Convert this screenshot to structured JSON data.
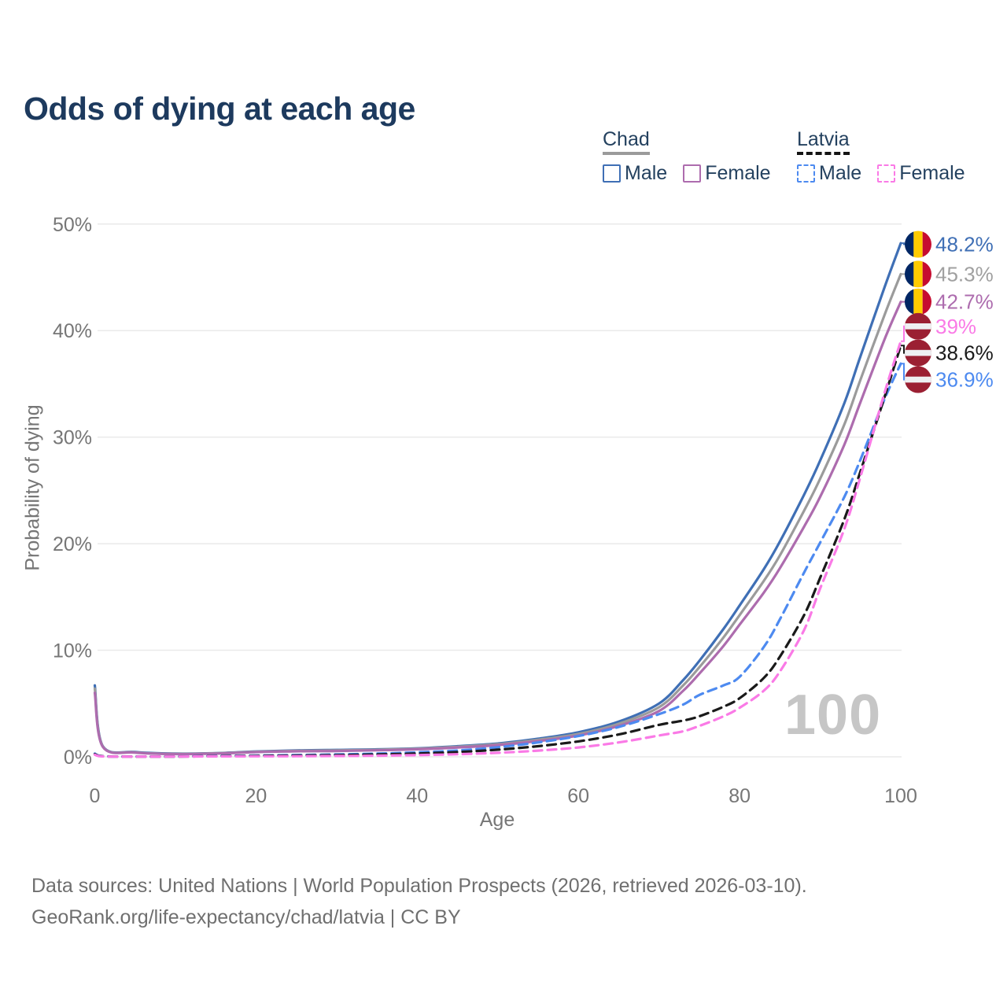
{
  "title": "Odds of dying at each age",
  "legend": {
    "groups": [
      {
        "country": "Chad",
        "line_style": "solid",
        "items": [
          {
            "label": "Male",
            "color": "#3f6fb5"
          },
          {
            "label": "Female",
            "color": "#ad6cae"
          }
        ]
      },
      {
        "country": "Latvia",
        "line_style": "dashed",
        "items": [
          {
            "label": "Male",
            "color": "#4d8af0"
          },
          {
            "label": "Female",
            "color": "#fa7ae6"
          }
        ]
      }
    ]
  },
  "watermark_age": "100",
  "chart_data": {
    "type": "line",
    "title": "Odds of dying at each age",
    "xlabel": "Age",
    "ylabel": "Probability of dying",
    "xlim": [
      0,
      100
    ],
    "ylim": [
      0,
      50
    ],
    "x_ticks": [
      0,
      20,
      40,
      60,
      80,
      100
    ],
    "y_tick_labels": [
      "0%",
      "10%",
      "20%",
      "30%",
      "40%",
      "50%"
    ],
    "grid": "horizontal",
    "legend_position": "top-right",
    "ages": [
      0,
      1,
      5,
      10,
      15,
      20,
      25,
      30,
      35,
      40,
      45,
      50,
      55,
      60,
      65,
      70,
      73,
      75,
      78,
      80,
      83,
      85,
      88,
      90,
      93,
      95,
      98,
      100
    ],
    "series": [
      {
        "name": "Chad Male",
        "country": "Chad",
        "sex": "Male",
        "style": "solid",
        "color": "#3f6fb5",
        "end_value_pct": 48.2,
        "values": [
          6.7,
          1.0,
          0.45,
          0.3,
          0.35,
          0.5,
          0.6,
          0.65,
          0.7,
          0.8,
          1.0,
          1.25,
          1.7,
          2.3,
          3.3,
          5.0,
          7.2,
          9.0,
          12.0,
          14.2,
          17.6,
          20.2,
          24.6,
          27.8,
          33.2,
          37.6,
          44.1,
          48.2
        ]
      },
      {
        "name": "Chad (both sexes)",
        "country": "Chad",
        "sex": "Both",
        "style": "solid",
        "color": "#9b9b9b",
        "end_value_pct": 45.3,
        "values": [
          6.4,
          0.97,
          0.42,
          0.28,
          0.33,
          0.47,
          0.56,
          0.6,
          0.66,
          0.76,
          0.94,
          1.18,
          1.6,
          2.15,
          3.1,
          4.65,
          6.7,
          8.4,
          11.2,
          13.3,
          16.5,
          18.9,
          23.1,
          26.1,
          31.2,
          35.4,
          41.5,
          45.3
        ]
      },
      {
        "name": "Chad Female",
        "country": "Chad",
        "sex": "Female",
        "style": "solid",
        "color": "#ad6cae",
        "end_value_pct": 42.7,
        "values": [
          6.0,
          0.93,
          0.4,
          0.26,
          0.3,
          0.44,
          0.52,
          0.55,
          0.61,
          0.71,
          0.88,
          1.1,
          1.48,
          2.0,
          2.9,
          4.3,
          6.2,
          7.8,
          10.4,
          12.4,
          15.4,
          17.7,
          21.6,
          24.4,
          29.3,
          33.3,
          39.2,
          42.7
        ]
      },
      {
        "name": "Latvia Male",
        "country": "Latvia",
        "sex": "Male",
        "style": "dashed",
        "color": "#4d8af0",
        "end_value_pct": 36.9,
        "values": [
          0.3,
          0.06,
          0.03,
          0.03,
          0.08,
          0.12,
          0.17,
          0.22,
          0.3,
          0.42,
          0.6,
          0.9,
          1.35,
          1.95,
          2.8,
          4.0,
          4.9,
          5.8,
          6.7,
          7.5,
          10.3,
          12.9,
          17.3,
          20.1,
          24.4,
          27.9,
          33.6,
          36.9
        ]
      },
      {
        "name": "Latvia (both sexes)",
        "country": "Latvia",
        "sex": "Both",
        "style": "dashed",
        "color": "#1a1a1a",
        "end_value_pct": 38.6,
        "values": [
          0.25,
          0.05,
          0.02,
          0.02,
          0.06,
          0.09,
          0.12,
          0.16,
          0.22,
          0.31,
          0.45,
          0.67,
          1.0,
          1.45,
          2.1,
          3.0,
          3.4,
          3.8,
          4.7,
          5.5,
          7.4,
          9.4,
          13.3,
          16.8,
          22.3,
          26.8,
          33.8,
          38.6
        ]
      },
      {
        "name": "Latvia Female",
        "country": "Latvia",
        "sex": "Female",
        "style": "dashed",
        "color": "#fa7ae6",
        "end_value_pct": 39.0,
        "values": [
          0.2,
          0.04,
          0.02,
          0.02,
          0.04,
          0.05,
          0.06,
          0.08,
          0.11,
          0.16,
          0.24,
          0.38,
          0.58,
          0.88,
          1.35,
          2.0,
          2.4,
          2.9,
          3.8,
          4.6,
          6.2,
          8.0,
          11.9,
          15.8,
          21.4,
          26.3,
          34.2,
          39.0
        ]
      }
    ],
    "end_labels": [
      {
        "text": "48.2%",
        "color": "#3f6fb5",
        "flag": "chad",
        "value": 48.2,
        "label_y_pct": 48.1
      },
      {
        "text": "45.3%",
        "color": "#a0a0a0",
        "flag": "chad",
        "value": 45.3,
        "label_y_pct": 45.3
      },
      {
        "text": "42.7%",
        "color": "#ad6cae",
        "flag": "chad",
        "value": 42.7,
        "label_y_pct": 42.7
      },
      {
        "text": "39%",
        "color": "#fa7ae6",
        "flag": "latvia",
        "value": 39.0,
        "label_y_pct": 40.4
      },
      {
        "text": "38.6%",
        "color": "#1a1a1a",
        "flag": "latvia",
        "value": 38.6,
        "label_y_pct": 37.9
      },
      {
        "text": "36.9%",
        "color": "#4d8af0",
        "flag": "latvia",
        "value": 36.9,
        "label_y_pct": 35.4
      }
    ],
    "flag_colors": {
      "chad": [
        "#002664",
        "#fecb00",
        "#c60c30"
      ],
      "latvia": {
        "base": "#9b2033",
        "stripe": "#eef0f2"
      }
    }
  },
  "footer": {
    "line1": "Data sources: United Nations | World Population Prospects (2026, retrieved 2026-03-10).",
    "line2": "GeoRank.org/life-expectancy/chad/latvia | CC BY"
  }
}
